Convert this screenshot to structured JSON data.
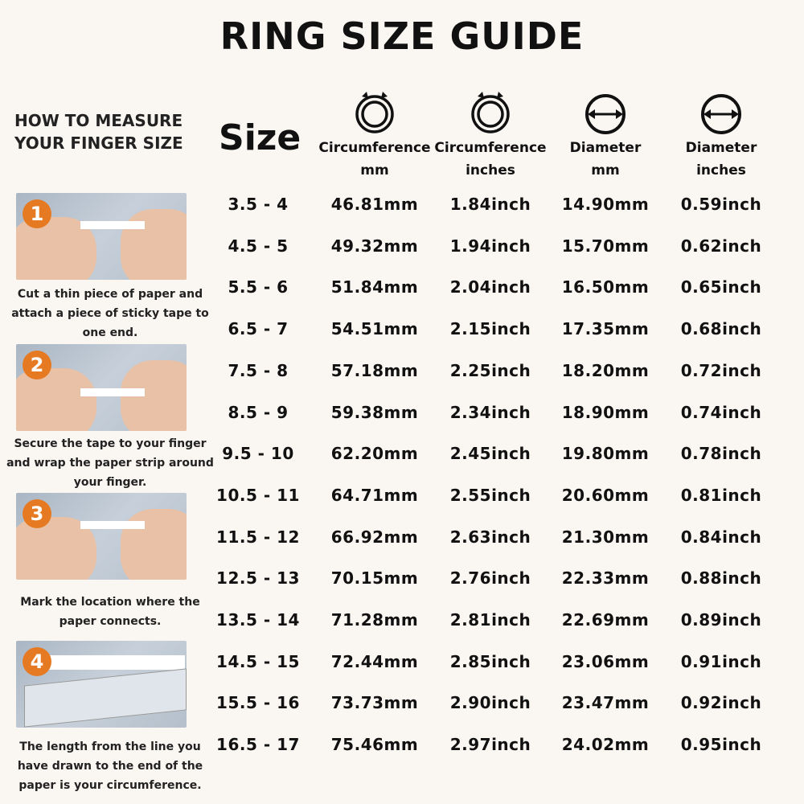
{
  "title": "RING SIZE GUIDE",
  "instructions": {
    "heading_line1": "HOW TO MEASURE",
    "heading_line2": "YOUR FINGER SIZE",
    "steps": [
      {
        "number": "1",
        "caption": "Cut a thin piece of paper and attach a piece of sticky tape to one end."
      },
      {
        "number": "2",
        "caption": "Secure the tape to your finger and wrap the paper strip around your finger."
      },
      {
        "number": "3",
        "caption": "Mark the location where the paper connects."
      },
      {
        "number": "4",
        "caption": "The length from the line you have drawn to the end of the paper is your circumference."
      }
    ]
  },
  "table": {
    "size_header": "Size",
    "columns": [
      {
        "icon": "circumference-icon",
        "line1": "Circumference",
        "line2": "mm"
      },
      {
        "icon": "circumference-icon",
        "line1": "Circumference",
        "line2": "inches"
      },
      {
        "icon": "diameter-icon",
        "line1": "Diameter",
        "line2": "mm"
      },
      {
        "icon": "diameter-icon",
        "line1": "Diameter",
        "line2": "inches"
      }
    ],
    "rows": [
      [
        "3.5 - 4",
        "46.81mm",
        "1.84inch",
        "14.90mm",
        "0.59inch"
      ],
      [
        "4.5 - 5",
        "49.32mm",
        "1.94inch",
        "15.70mm",
        "0.62inch"
      ],
      [
        "5.5 - 6",
        "51.84mm",
        "2.04inch",
        "16.50mm",
        "0.65inch"
      ],
      [
        "6.5 - 7",
        "54.51mm",
        "2.15inch",
        "17.35mm",
        "0.68inch"
      ],
      [
        "7.5 - 8",
        "57.18mm",
        "2.25inch",
        "18.20mm",
        "0.72inch"
      ],
      [
        "8.5 - 9",
        "59.38mm",
        "2.34inch",
        "18.90mm",
        "0.74inch"
      ],
      [
        "9.5 - 10",
        "62.20mm",
        "2.45inch",
        "19.80mm",
        "0.78inch"
      ],
      [
        "10.5 - 11",
        "64.71mm",
        "2.55inch",
        "20.60mm",
        "0.81inch"
      ],
      [
        "11.5 - 12",
        "66.92mm",
        "2.63inch",
        "21.30mm",
        "0.84inch"
      ],
      [
        "12.5 - 13",
        "70.15mm",
        "2.76inch",
        "22.33mm",
        "0.88inch"
      ],
      [
        "13.5 - 14",
        "71.28mm",
        "2.81inch",
        "22.69mm",
        "0.89inch"
      ],
      [
        "14.5 - 15",
        "72.44mm",
        "2.85inch",
        "23.06mm",
        "0.91inch"
      ],
      [
        "15.5 - 16",
        "73.73mm",
        "2.90inch",
        "23.47mm",
        "0.92inch"
      ],
      [
        "16.5 - 17",
        "75.46mm",
        "2.97inch",
        "24.02mm",
        "0.95inch"
      ]
    ]
  },
  "colors": {
    "background": "#faf6f1",
    "badge": "#e67a22",
    "text": "#111111"
  }
}
